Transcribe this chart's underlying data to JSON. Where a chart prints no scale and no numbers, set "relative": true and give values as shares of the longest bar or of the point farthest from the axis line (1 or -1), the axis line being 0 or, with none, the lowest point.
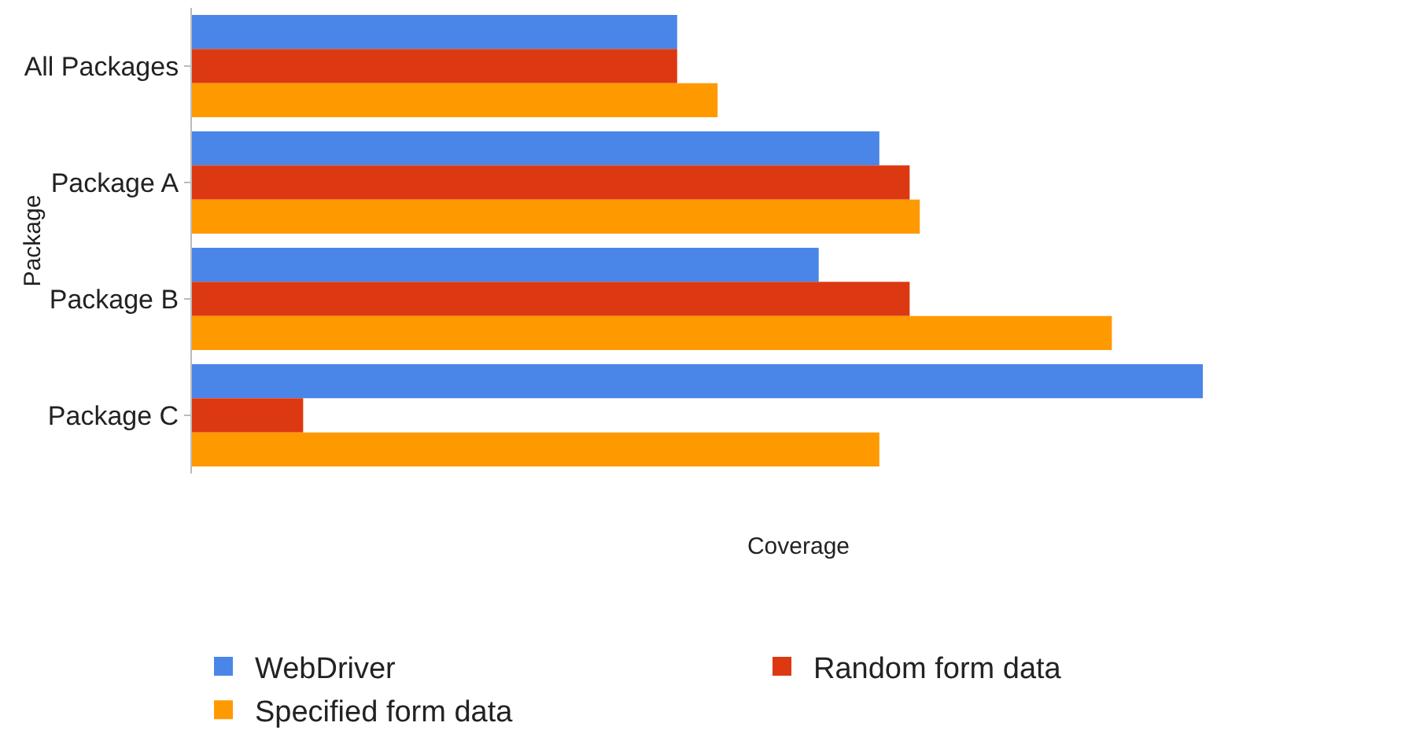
{
  "chart_data": {
    "type": "bar",
    "orientation": "horizontal",
    "relative": true,
    "xlabel": "Coverage",
    "ylabel": "Package",
    "categories": [
      "All Packages",
      "Package A",
      "Package B",
      "Package C"
    ],
    "series": [
      {
        "name": "WebDriver",
        "color": "#4a86e8",
        "values": [
          0.48,
          0.68,
          0.62,
          1
        ]
      },
      {
        "name": "Random form data",
        "color": "#dc3912",
        "values": [
          0.48,
          0.71,
          0.71,
          0.11
        ]
      },
      {
        "name": "Specified form data",
        "color": "#ff9900",
        "values": [
          0.52,
          0.72,
          0.91,
          0.68
        ]
      }
    ],
    "legend": "bottom"
  }
}
